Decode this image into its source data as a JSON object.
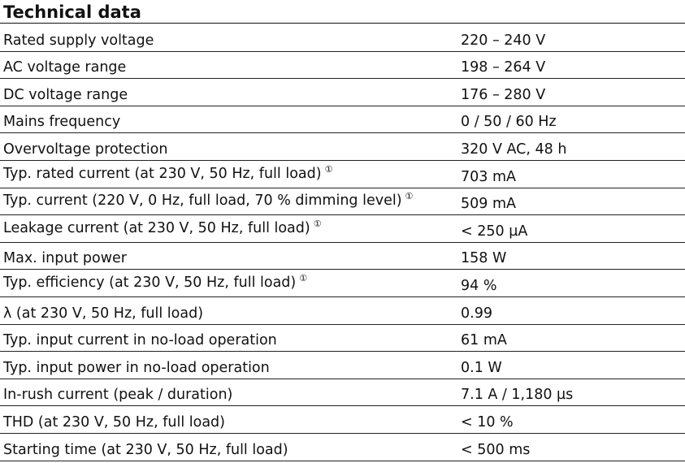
{
  "title": "Technical data",
  "note_symbol": "①",
  "rows": [
    {
      "label": "Rated supply voltage",
      "value": "220 – 240 V",
      "note": false
    },
    {
      "label": "AC voltage range",
      "value": "198 – 264 V",
      "note": false
    },
    {
      "label": "DC voltage range",
      "value": "176 – 280 V",
      "note": false
    },
    {
      "label": "Mains frequency",
      "value": "0 / 50 / 60 Hz",
      "note": false
    },
    {
      "label": "Overvoltage protection",
      "value": "320 V AC, 48 h",
      "note": false
    },
    {
      "label": "Typ. rated current (at 230 V, 50 Hz, full load)",
      "value": "703 mA",
      "note": true
    },
    {
      "label": "Typ. current (220 V, 0 Hz, full load, 70 % dimming level)",
      "value": "509 mA",
      "note": true
    },
    {
      "label": "Leakage current (at 230 V, 50 Hz, full load)",
      "value": "< 250 µA",
      "note": true
    },
    {
      "label": "Max. input power",
      "value": "158 W",
      "note": false
    },
    {
      "label": "Typ. efficiency (at 230 V, 50 Hz, full load)",
      "value": "94 %",
      "note": true
    },
    {
      "label": "λ (at 230 V, 50 Hz, full load)",
      "value": "0.99",
      "note": false
    },
    {
      "label": "Typ. input current in no-load operation",
      "value": "61 mA",
      "note": false
    },
    {
      "label": "Typ. input power in no-load operation",
      "value": "0.1 W",
      "note": false
    },
    {
      "label": "In-rush current (peak / duration)",
      "value": "7.1 A / 1,180 µs",
      "note": false
    },
    {
      "label": "THD (at 230 V, 50 Hz, full load)",
      "value": "< 10 %",
      "note": false
    },
    {
      "label": "Starting time (at 230 V, 50 Hz, full load)",
      "value": "< 500 ms",
      "note": false
    }
  ]
}
